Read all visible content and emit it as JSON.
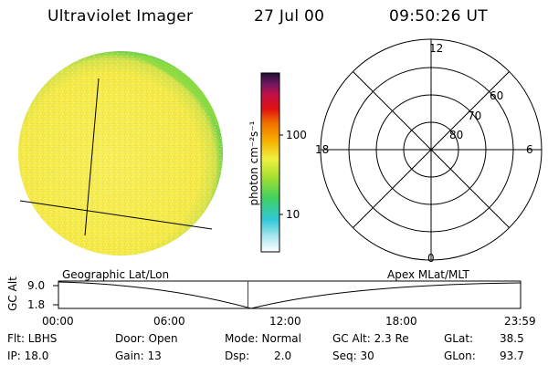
{
  "header": {
    "title": "Ultraviolet Imager",
    "date": "27 Jul 00",
    "time": "09:50:26 UT"
  },
  "colorbar": {
    "label": "photon cm⁻²s⁻¹",
    "ticks": [
      "100",
      "10"
    ]
  },
  "polar": {
    "mlt_labels": [
      "12",
      "18",
      "6",
      "0"
    ],
    "lat_labels": [
      "60",
      "70",
      "80"
    ]
  },
  "timeline": {
    "ylabel": "GC Alt",
    "ytick_top": "9.0",
    "ytick_bottom": "1.8",
    "left_title": "Geographic Lat/Lon",
    "right_title": "Apex MLat/MLT",
    "xticks": [
      "00:00",
      "06:00",
      "12:00",
      "18:00",
      "23:59"
    ],
    "current_time_hours": 9.84
  },
  "status": {
    "filter": "Flt: LBHS",
    "door": "Door: Open",
    "mode": "Mode: Normal",
    "gc_alt": "GC Alt: 2.3 Re",
    "glat_label": "GLat:",
    "glat_value": "38.5",
    "ip": "IP: 18.0",
    "gain": "Gain: 13",
    "dsp_label": "Dsp:",
    "dsp_value": "2.0",
    "seq": "Seq: 30",
    "glon_label": "GLon:",
    "glon_value": "93.7"
  },
  "colors": {
    "disk_fill": "#f4ec50",
    "disk_edge": "#7fdc3c",
    "orbit_marker": "#cc0000"
  }
}
